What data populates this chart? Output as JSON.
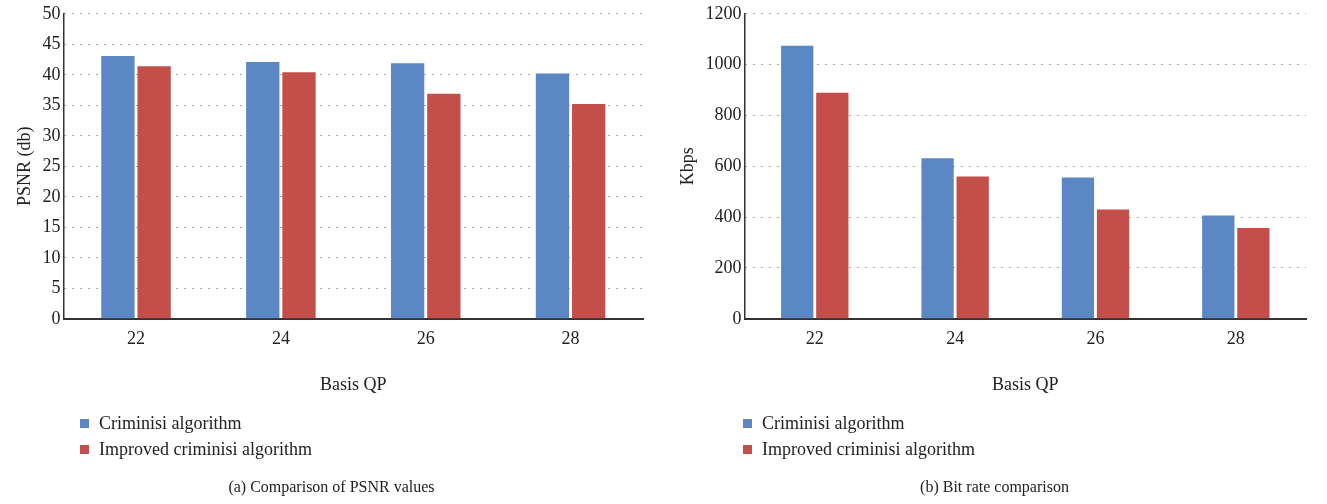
{
  "chart_data": [
    {
      "type": "bar",
      "categories": [
        "22",
        "24",
        "26",
        "28"
      ],
      "xlabel": "Basis QP",
      "ylabel": "PSNR (db)",
      "ylim": [
        0,
        50
      ],
      "yticks": [
        0,
        5,
        10,
        15,
        20,
        25,
        30,
        35,
        40,
        45,
        50
      ],
      "grid": "y",
      "legend": "bottom left",
      "annotations": [
        "(a) Comparison of PSNR values"
      ],
      "series": [
        {
          "name": "Criminisi algorithm",
          "color": "#5b87c4",
          "values": [
            43.1,
            42.1,
            41.9,
            40.2
          ]
        },
        {
          "name": "Improved criminisi algorithm",
          "color": "#c44e4a",
          "values": [
            41.4,
            40.4,
            36.9,
            35.2
          ]
        }
      ]
    },
    {
      "type": "bar",
      "categories": [
        "22",
        "24",
        "26",
        "28"
      ],
      "xlabel": "Basis QP",
      "ylabel": "Kbps",
      "ylim": [
        0,
        1200
      ],
      "yticks": [
        0,
        200,
        400,
        600,
        800,
        1000,
        1200
      ],
      "grid": "y",
      "legend": "bottom left",
      "annotations": [
        "(b) Bit rate comparison"
      ],
      "series": [
        {
          "name": "Criminisi algorithm",
          "color": "#5b87c4",
          "values": [
            1074,
            632,
            556,
            406
          ]
        },
        {
          "name": "Improved criminisi algorithm",
          "color": "#c44e4a",
          "values": [
            889,
            560,
            430,
            357
          ]
        }
      ]
    }
  ]
}
